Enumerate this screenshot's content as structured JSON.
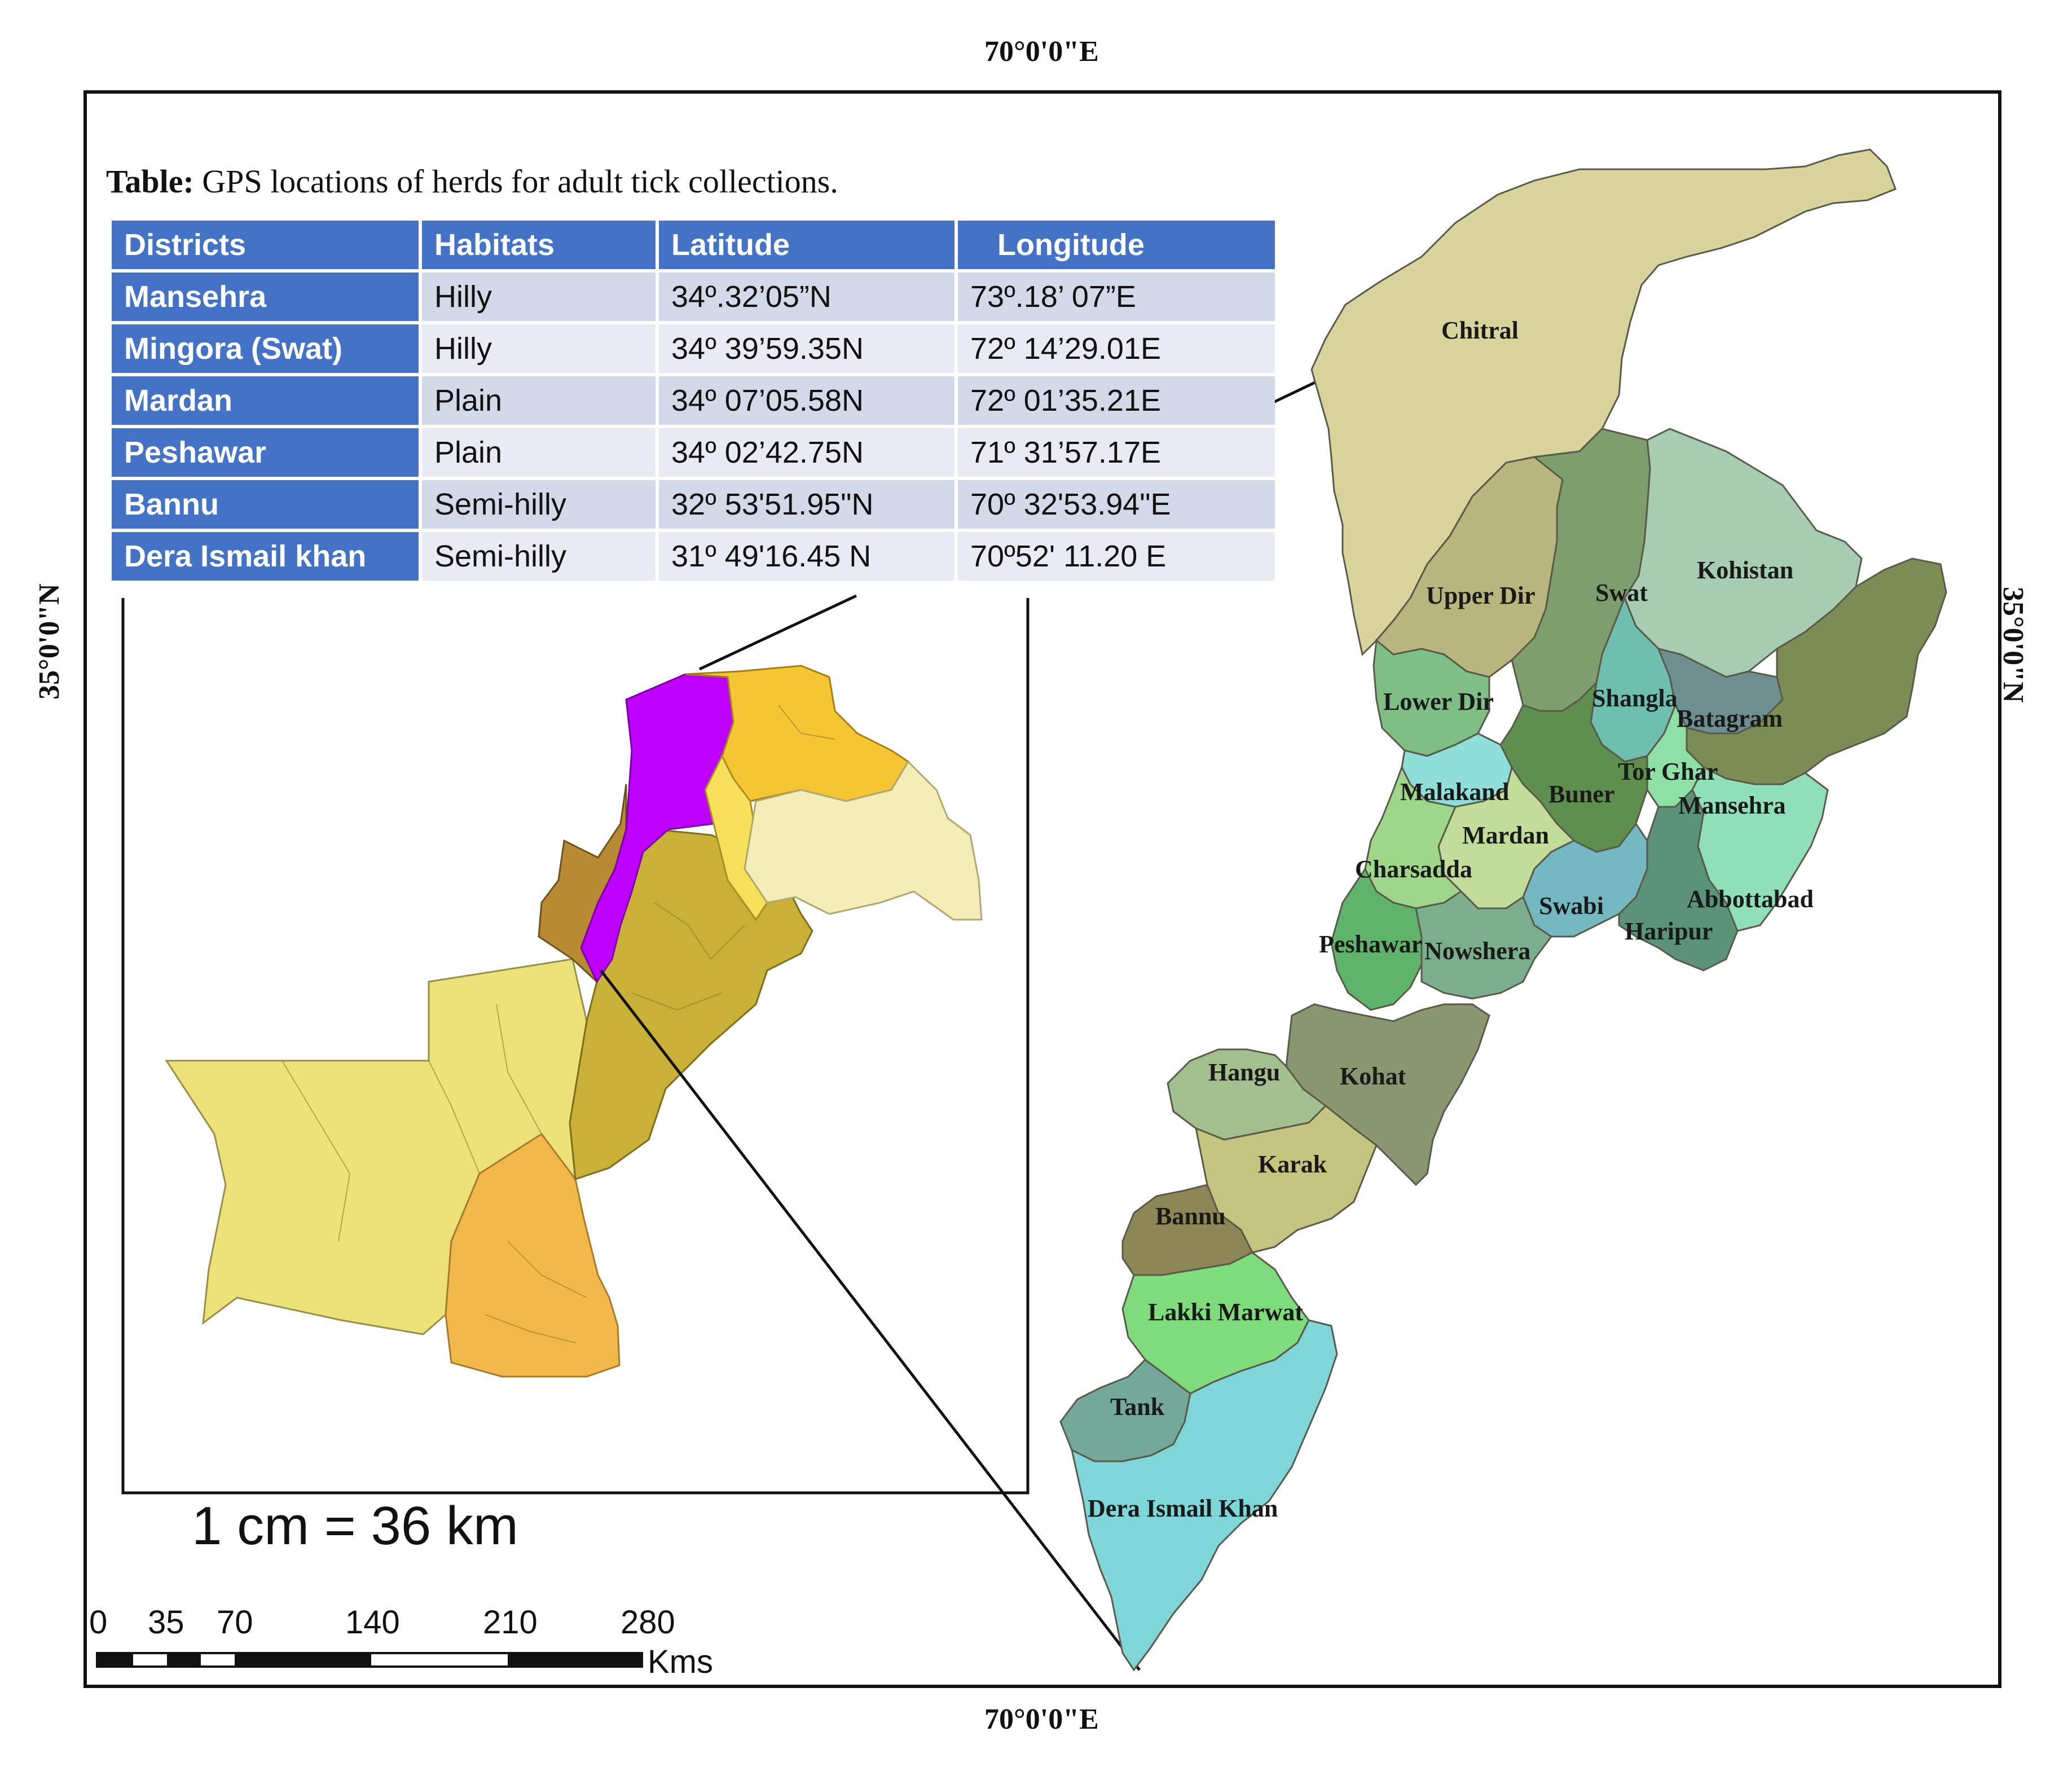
{
  "map": {
    "coord_top": "70°0'0\"E",
    "coord_bottom": "70°0'0\"E",
    "coord_left": "35°0'0\"N",
    "coord_right": "35°0'0\"N",
    "table": {
      "caption_bold": "Table:",
      "caption_rest": " GPS locations of herds for adult tick collections.",
      "headers": [
        "Districts",
        "Habitats",
        "Latitude",
        "Longitude"
      ],
      "rows": [
        [
          "Mansehra",
          "Hilly",
          "34º.32’05”N",
          "73º.18’ 07”E"
        ],
        [
          "Mingora (Swat)",
          "Hilly",
          "34º 39’59.35N",
          "72º 14’29.01E"
        ],
        [
          "Mardan",
          "Plain",
          "34º 07’05.58N",
          "72º 01’35.21E"
        ],
        [
          "Peshawar",
          "Plain",
          "34º 02’42.75N",
          "71º 31’57.17E"
        ],
        [
          "Bannu",
          "Semi-hilly",
          "32º 53'51.95\"N",
          "70º 32'53.94\"E"
        ],
        [
          "Dera Ismail khan",
          "Semi-hilly",
          "31º 49'16.45 N",
          "70º52' 11.20 E"
        ]
      ]
    },
    "scale_text": "1 cm = 36 km",
    "scale_ticks": [
      "0",
      "35",
      "70",
      "140",
      "210",
      "280"
    ],
    "scale_unit": "Kms",
    "highlight_color": "#c000ff",
    "districts": [
      {
        "name": "Chitral",
        "color": "#d9d49b"
      },
      {
        "name": "Upper Dir",
        "color": "#b9b57e"
      },
      {
        "name": "Swat",
        "color": "#7e9e6e"
      },
      {
        "name": "Kohistan",
        "color": "#a6ccb2"
      },
      {
        "name": "Lower Dir",
        "color": "#7fbf85"
      },
      {
        "name": "Shangla",
        "color": "#6fbfae"
      },
      {
        "name": "Batagram",
        "color": "#6e8f8f"
      },
      {
        "name": "Tor Ghar",
        "color": "#8fe0a6"
      },
      {
        "name": "Malakand",
        "color": "#8fded8"
      },
      {
        "name": "Buner",
        "color": "#5f8f4e"
      },
      {
        "name": "Mansehra",
        "color": "#7c8c55"
      },
      {
        "name": "Mardan",
        "color": "#c2dc9a"
      },
      {
        "name": "Charsadda",
        "color": "#9ed78a"
      },
      {
        "name": "Swabi",
        "color": "#74b8c2"
      },
      {
        "name": "Abbottabad",
        "color": "#8fe0b8"
      },
      {
        "name": "Haripur",
        "color": "#5a927a"
      },
      {
        "name": "Peshawar",
        "color": "#5fb36a"
      },
      {
        "name": "Nowshera",
        "color": "#7aae8c"
      },
      {
        "name": "Hangu",
        "color": "#a3bf8e"
      },
      {
        "name": "Kohat",
        "color": "#8a9670"
      },
      {
        "name": "Karak",
        "color": "#c5c480"
      },
      {
        "name": "Bannu",
        "color": "#8c8755"
      },
      {
        "name": "Lakki Marwat",
        "color": "#7fdc7c"
      },
      {
        "name": "Tank",
        "color": "#74a89a"
      },
      {
        "name": "Dera Ismail Khan",
        "color": "#7fd6d8"
      }
    ]
  }
}
